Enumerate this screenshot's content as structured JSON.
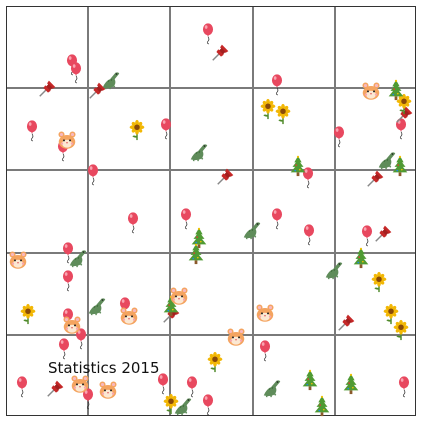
{
  "caption": "Statistics 2015",
  "grid": {
    "rows": 5,
    "cols": 5,
    "line_color": "#7a7a7a"
  },
  "colors": {
    "balloon": "#e8485f",
    "pin": "#c62828",
    "crocodile": "#5f8c5a",
    "sunflower_petal": "#f2b705",
    "sunflower_center": "#8a4b08",
    "tree": "#4f9a33",
    "hamster": "#f4a460"
  },
  "sprite_types": [
    "balloon-icon",
    "pushpin-icon",
    "crocodile-icon",
    "sunflower-icon",
    "christmas-tree-icon",
    "hamster-icon"
  ]
}
